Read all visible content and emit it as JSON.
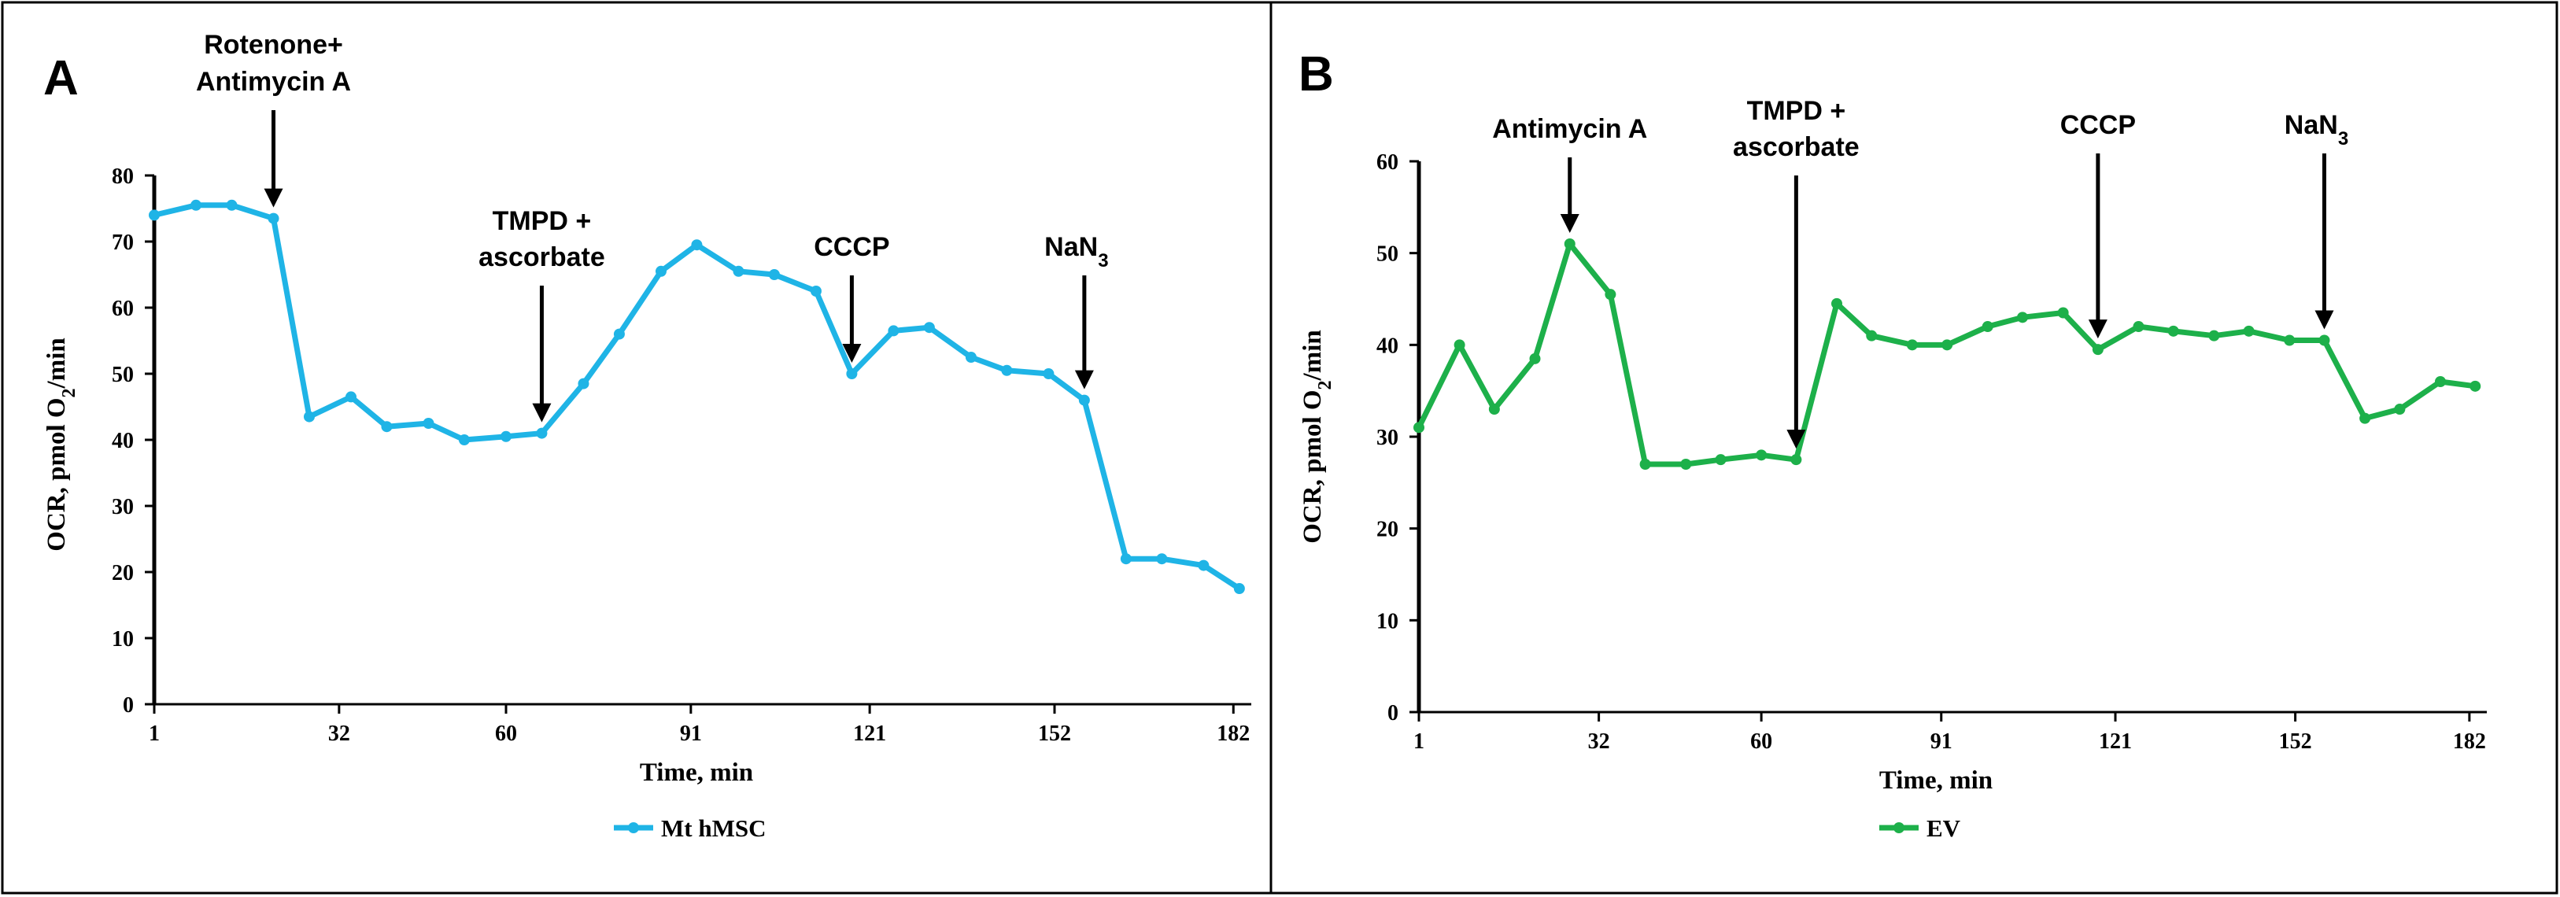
{
  "chart_data": [
    {
      "type": "line",
      "panel_label": "A",
      "xlabel": "Time, min",
      "ylabel": "OCR, pmol O2/min",
      "ylabel_parts": [
        "OCR, pmol O",
        "2",
        "/min"
      ],
      "xlim": [
        1,
        185
      ],
      "ylim": [
        0,
        80
      ],
      "xticks": [
        1,
        32,
        60,
        91,
        121,
        152,
        182
      ],
      "yticks": [
        0,
        10,
        20,
        30,
        40,
        50,
        60,
        70,
        80
      ],
      "grid": false,
      "legend_position": "bottom-center",
      "series": [
        {
          "name": "Mt hMSC",
          "color": "#1FB4E6",
          "x": [
            1,
            8,
            14,
            21,
            27,
            34,
            40,
            47,
            53,
            60,
            66,
            73,
            79,
            86,
            92,
            99,
            105,
            112,
            118,
            125,
            131,
            138,
            144,
            151,
            157,
            164,
            170,
            177,
            183
          ],
          "y": [
            74,
            75.5,
            75.5,
            73.5,
            43.5,
            46.5,
            42,
            42.5,
            40,
            40.5,
            41,
            48.5,
            56,
            65.5,
            69.5,
            65.5,
            65,
            62.5,
            50,
            56.5,
            57,
            52.5,
            50.5,
            50,
            46,
            22,
            22,
            21,
            17.5
          ]
        }
      ],
      "annotations": [
        {
          "lines": [
            "Rotenone+",
            "Antimycin A"
          ],
          "x": 21
        },
        {
          "lines": [
            "TMPD +",
            "ascorbate"
          ],
          "x": 66
        },
        {
          "lines": [
            "CCCP"
          ],
          "x": 118
        },
        {
          "lines": [
            "NaN",
            "3"
          ],
          "x": 157
        }
      ]
    },
    {
      "type": "line",
      "panel_label": "B",
      "xlabel": "Time, min",
      "ylabel": "OCR, pmol O2/min",
      "ylabel_parts": [
        "OCR, pmol O",
        "2",
        "/min"
      ],
      "xlim": [
        1,
        185
      ],
      "ylim": [
        0,
        60
      ],
      "xticks": [
        1,
        32,
        60,
        91,
        121,
        152,
        182
      ],
      "yticks": [
        0,
        10,
        20,
        30,
        40,
        50,
        60
      ],
      "grid": false,
      "legend_position": "bottom-center",
      "series": [
        {
          "name": "EV",
          "color": "#1DB04A",
          "x": [
            1,
            8,
            14,
            21,
            27,
            34,
            40,
            47,
            53,
            60,
            66,
            73,
            79,
            86,
            92,
            99,
            105,
            112,
            118,
            125,
            131,
            138,
            144,
            151,
            157,
            164,
            170,
            177,
            183
          ],
          "y": [
            31,
            40,
            33,
            38.5,
            51,
            45.5,
            27,
            27,
            27.5,
            28,
            27.5,
            44.5,
            41,
            40,
            40,
            42,
            43,
            43.5,
            39.5,
            42,
            41.5,
            41,
            41.5,
            40.5,
            40.5,
            32,
            33,
            36,
            35.5
          ]
        }
      ],
      "annotations": [
        {
          "lines": [
            "Antimycin A"
          ],
          "x": 27
        },
        {
          "lines": [
            "TMPD +",
            "ascorbate"
          ],
          "x": 66
        },
        {
          "lines": [
            "CCCP"
          ],
          "x": 118
        },
        {
          "lines": [
            "NaN",
            "3"
          ],
          "x": 157
        }
      ]
    }
  ]
}
